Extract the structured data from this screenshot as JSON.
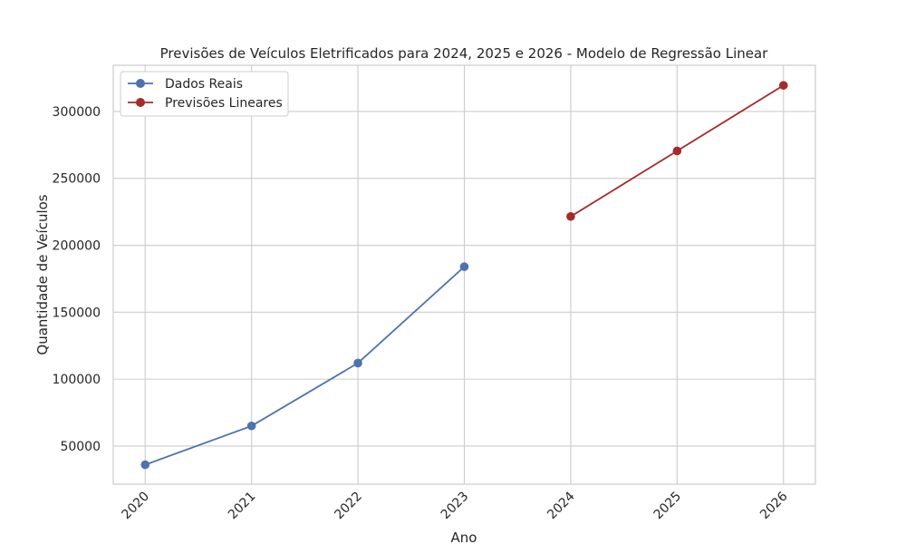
{
  "chart_data": {
    "type": "line",
    "title": "Previsões de Veículos Eletrificados para 2024, 2025 e 2026 - Modelo de Regressão Linear",
    "xlabel": "Ano",
    "ylabel": "Quantidade de Veículos",
    "x_ticks": [
      "2020",
      "2021",
      "2022",
      "2023",
      "2024",
      "2025",
      "2026"
    ],
    "y_ticks": [
      "50000",
      "100000",
      "150000",
      "200000",
      "250000",
      "300000"
    ],
    "xlim": [
      2019.7,
      2026.3
    ],
    "ylim": [
      21500,
      334500
    ],
    "grid": true,
    "legend_position": "top-left",
    "series": [
      {
        "name": "Dados Reais",
        "color": "#4c72b0",
        "x": [
          2020,
          2021,
          2022,
          2023
        ],
        "y": [
          36000,
          65000,
          112000,
          184000
        ]
      },
      {
        "name": "Previsões Lineares",
        "color": "#a52a2a",
        "x": [
          2024,
          2025,
          2026
        ],
        "y": [
          221500,
          270500,
          319500
        ]
      }
    ]
  }
}
